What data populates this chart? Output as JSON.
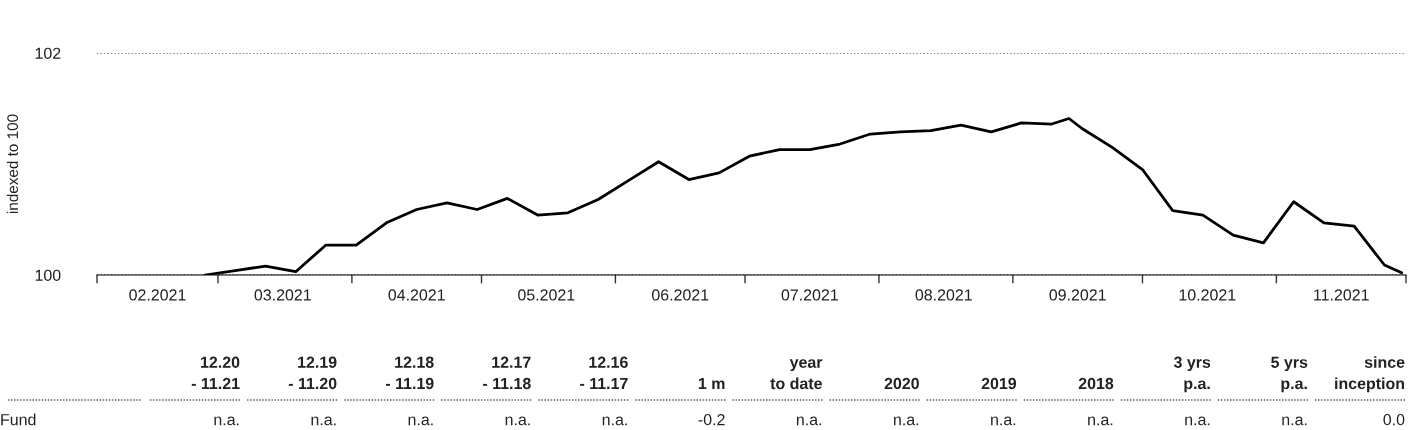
{
  "chart_data": {
    "type": "line",
    "ylabel": "indexed to 100",
    "x": [
      "2021-02-26",
      "2021-03-05",
      "2021-03-12",
      "2021-03-19",
      "2021-03-26",
      "2021-04-02",
      "2021-04-09",
      "2021-04-16",
      "2021-04-23",
      "2021-04-30",
      "2021-05-07",
      "2021-05-14",
      "2021-05-21",
      "2021-05-28",
      "2021-06-04",
      "2021-06-11",
      "2021-06-18",
      "2021-06-25",
      "2021-07-02",
      "2021-07-09",
      "2021-07-16",
      "2021-07-23",
      "2021-07-30",
      "2021-08-06",
      "2021-08-13",
      "2021-08-20",
      "2021-08-27",
      "2021-09-03",
      "2021-09-10",
      "2021-09-14",
      "2021-09-17",
      "2021-09-24",
      "2021-10-01",
      "2021-10-08",
      "2021-10-15",
      "2021-10-22",
      "2021-10-29",
      "2021-11-05",
      "2021-11-12",
      "2021-11-19",
      "2021-11-26",
      "2021-11-30"
    ],
    "series": [
      {
        "color": "#000000",
        "values": [
          100.0,
          100.04,
          100.08,
          100.03,
          100.27,
          100.27,
          100.47,
          100.59,
          100.65,
          100.59,
          100.69,
          100.54,
          100.56,
          100.68,
          100.85,
          101.02,
          100.86,
          100.92,
          101.07,
          101.13,
          101.13,
          101.18,
          101.27,
          101.29,
          101.3,
          101.35,
          101.29,
          101.37,
          101.36,
          101.41,
          101.32,
          101.15,
          100.95,
          100.58,
          100.54,
          100.36,
          100.29,
          100.66,
          100.47,
          100.44,
          100.09,
          100.02
        ]
      }
    ],
    "xlim": [
      "2021-02-01",
      "2021-12-01"
    ],
    "xticks": [
      {
        "value": "2021-02-01",
        "label": null
      },
      {
        "value": "2021-02-15",
        "label": "02.2021"
      },
      {
        "value": "2021-03-01",
        "label": null
      },
      {
        "value": "2021-03-16",
        "label": "03.2021"
      },
      {
        "value": "2021-04-01",
        "label": null
      },
      {
        "value": "2021-04-16",
        "label": "04.2021"
      },
      {
        "value": "2021-05-01",
        "label": null
      },
      {
        "value": "2021-05-16",
        "label": "05.2021"
      },
      {
        "value": "2021-06-01",
        "label": null
      },
      {
        "value": "2021-06-16",
        "label": "06.2021"
      },
      {
        "value": "2021-07-01",
        "label": null
      },
      {
        "value": "2021-07-16",
        "label": "07.2021"
      },
      {
        "value": "2021-08-01",
        "label": null
      },
      {
        "value": "2021-08-16",
        "label": "08.2021"
      },
      {
        "value": "2021-09-01",
        "label": null
      },
      {
        "value": "2021-09-16",
        "label": "09.2021"
      },
      {
        "value": "2021-10-01",
        "label": null
      },
      {
        "value": "2021-10-16",
        "label": "10.2021"
      },
      {
        "value": "2021-11-01",
        "label": null
      },
      {
        "value": "2021-11-16",
        "label": "11.2021"
      },
      {
        "value": "2021-12-01",
        "label": null
      }
    ],
    "ylim": [
      100,
      102
    ],
    "yticks": [
      100,
      102
    ],
    "grid": "y",
    "marker": "none",
    "line_style": "solid",
    "legend": false,
    "annotations": [
      "12.20\n- 11.21",
      "12.19\n- 11.20",
      "12.18\n- 11.19",
      "12.17\n- 11.18",
      "12.16\n- 11.17",
      "1 m",
      "year\nto date",
      "2020",
      "2019",
      "2018",
      "3 yrs\np.a.",
      "5 yrs\np.a.",
      "since\ninception",
      "Fund",
      "n.a.",
      "n.a.",
      "n.a.",
      "n.a.",
      "n.a.",
      "-0.2",
      "n.a.",
      "n.a.",
      "n.a.",
      "n.a.",
      "n.a.",
      "n.a.",
      "0.0"
    ]
  }
}
